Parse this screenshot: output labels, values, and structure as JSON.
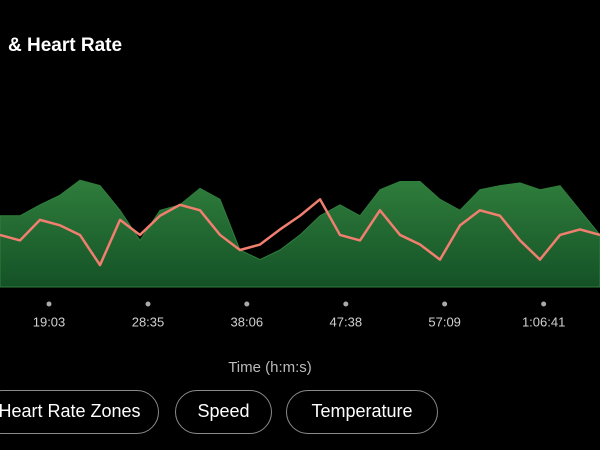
{
  "chart_data": {
    "type": "combo",
    "title": "& Heart Rate",
    "x_label": "Time (h:m:s)",
    "x": [
      14.33,
      16.26,
      18.18,
      20.11,
      22.03,
      23.96,
      25.89,
      27.81,
      29.74,
      31.66,
      33.59,
      35.52,
      37.44,
      39.37,
      41.29,
      43.22,
      45.15,
      47.07,
      49.0,
      50.92,
      52.85,
      54.78,
      56.7,
      58.63,
      60.55,
      62.48,
      64.41,
      66.33,
      68.26,
      70.18,
      72.11
    ],
    "series": [
      {
        "type": "area",
        "color": "#2f7d3c",
        "values": [
          52,
          52,
          60,
          67,
          78,
          74,
          56,
          34,
          56,
          60,
          72,
          64,
          27,
          20,
          27,
          38,
          52,
          60,
          52,
          71,
          77,
          77,
          64,
          56,
          71,
          74,
          76,
          71,
          74,
          56,
          38
        ]
      },
      {
        "type": "line",
        "color": "#f07f6f",
        "values": [
          38,
          34,
          49,
          45,
          38,
          16,
          49,
          38,
          52,
          60,
          56,
          38,
          27,
          31,
          42,
          52,
          64,
          38,
          34,
          56,
          38,
          31,
          20,
          45,
          56,
          52,
          34,
          20,
          38,
          42,
          38
        ]
      }
    ],
    "xlim": [
      14.33,
      72.11
    ],
    "ylim": [
      0,
      100
    ],
    "xticks": [
      {
        "value": 19.05,
        "label": "19:03"
      },
      {
        "value": 28.583,
        "label": "28:35"
      },
      {
        "value": 38.1,
        "label": "38:06"
      },
      {
        "value": 47.633,
        "label": "47:38"
      },
      {
        "value": 57.15,
        "label": "57:09"
      },
      {
        "value": 66.683,
        "label": "1:06:41"
      }
    ]
  },
  "buttons": [
    "Heart Rate Zones",
    "Speed",
    "Temperature"
  ]
}
